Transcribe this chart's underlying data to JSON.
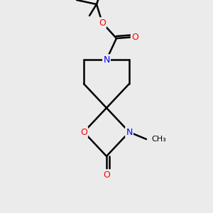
{
  "background_color": "#EBEBEB",
  "bond_color": "#000000",
  "atom_colors": {
    "N": "#0000FF",
    "O": "#FF0000",
    "C": "#000000"
  },
  "bond_width": 1.8,
  "figsize": [
    3.0,
    3.0
  ],
  "dpi": 100
}
